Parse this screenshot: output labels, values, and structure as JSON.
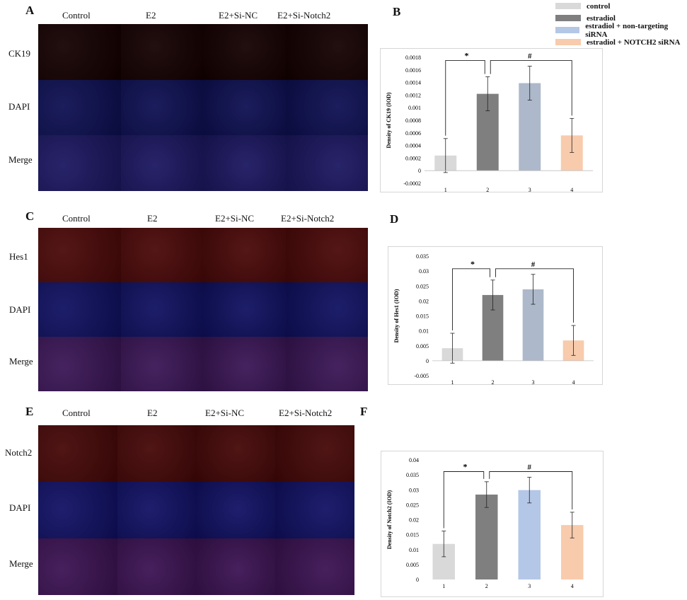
{
  "panels": {
    "A": "A",
    "B": "B",
    "C": "C",
    "D": "D",
    "E": "E",
    "F": "F"
  },
  "micrographs": [
    {
      "id": "A",
      "columns": [
        "Control",
        "E2",
        "E2+Si-NC",
        "E2+Si-Notch2"
      ],
      "rows": [
        "CK19",
        "DAPI",
        "Merge"
      ],
      "row_colors": [
        "#140000",
        "#0d0f52",
        "#1b1660"
      ]
    },
    {
      "id": "C",
      "columns": [
        "Control",
        "E2",
        "E2+Si-NC",
        "E2+Si-Notch2"
      ],
      "rows": [
        "Hes1",
        "DAPI",
        "Merge"
      ],
      "row_colors": [
        "#4a0808",
        "#0f1060",
        "#3a1555"
      ]
    },
    {
      "id": "E",
      "columns": [
        "Control",
        "E2",
        "E2+Si-NC",
        "E2+Si-Notch2"
      ],
      "rows": [
        "Notch2",
        "DAPI",
        "Merge"
      ],
      "row_colors": [
        "#450707",
        "#101064",
        "#3b1252"
      ]
    }
  ],
  "legend": {
    "items": [
      {
        "label": "control",
        "color": "#d9d9d9"
      },
      {
        "label": "estradiol",
        "color": "#7f7f7f"
      },
      {
        "label": "estradiol + non-targeting siRNA",
        "color": "#b4c7e7"
      },
      {
        "label": "estradiol + NOTCH2 siRNA",
        "color": "#f8cbad"
      }
    ]
  },
  "chart_data": [
    {
      "id": "B",
      "type": "bar",
      "categories": [
        "1",
        "2",
        "3",
        "4"
      ],
      "values": [
        0.00024,
        0.00122,
        0.00139,
        0.00056
      ],
      "errors": [
        0.00027,
        0.00027,
        0.00027,
        0.00027
      ],
      "colors": [
        "#d9d9d9",
        "#7f7f7f",
        "#adb9ca",
        "#f8cbad"
      ],
      "ylabel": "Density of CK19 (IOD)",
      "ylim": [
        -0.0002,
        0.0018
      ],
      "yticks": [
        "-0.0002",
        "0",
        "0.0002",
        "0.0004",
        "0.0006",
        "0.0008",
        "0.001",
        "0.0012",
        "0.0014",
        "0.0016",
        "0.0018"
      ],
      "ytick_values": [
        -0.0002,
        0,
        0.0002,
        0.0004,
        0.0006,
        0.0008,
        0.001,
        0.0012,
        0.0014,
        0.0016,
        0.0018
      ],
      "significance": [
        "*",
        "#"
      ]
    },
    {
      "id": "D",
      "type": "bar",
      "categories": [
        "1",
        "2",
        "3",
        "4"
      ],
      "values": [
        0.0042,
        0.022,
        0.0239,
        0.0068
      ],
      "errors": [
        0.005,
        0.005,
        0.005,
        0.005
      ],
      "colors": [
        "#d9d9d9",
        "#7f7f7f",
        "#adb9ca",
        "#f8cbad"
      ],
      "ylabel": "Density of Hes1 (IOD)",
      "ylim": [
        -0.005,
        0.035
      ],
      "yticks": [
        "-0.005",
        "0",
        "0.005",
        "0.01",
        "0.015",
        "0.02",
        "0.025",
        "0.03",
        "0.035"
      ],
      "ytick_values": [
        -0.005,
        0,
        0.005,
        0.01,
        0.015,
        0.02,
        0.025,
        0.03,
        0.035
      ],
      "significance": [
        "*",
        "#"
      ]
    },
    {
      "id": "F",
      "type": "bar",
      "categories": [
        "1",
        "2",
        "3",
        "4"
      ],
      "values": [
        0.0119,
        0.0284,
        0.0299,
        0.0182
      ],
      "errors": [
        0.0043,
        0.0043,
        0.0043,
        0.0043
      ],
      "colors": [
        "#d9d9d9",
        "#7f7f7f",
        "#b4c7e7",
        "#f8cbad"
      ],
      "ylabel": "Density of Notch2 (IOD)",
      "ylim": [
        0,
        0.04
      ],
      "yticks": [
        "0",
        "0.005",
        "0.01",
        "0.015",
        "0.02",
        "0.025",
        "0.03",
        "0.035",
        "0.04"
      ],
      "ytick_values": [
        0,
        0.005,
        0.01,
        0.015,
        0.02,
        0.025,
        0.03,
        0.035,
        0.04
      ],
      "significance": [
        "*",
        "#"
      ]
    }
  ]
}
